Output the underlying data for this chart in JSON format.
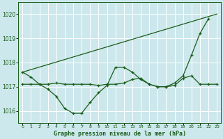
{
  "title": "Graphe pression niveau de la mer (hPa)",
  "background_color": "#cce8ec",
  "grid_color": "#ffffff",
  "line_color": "#1a5c1a",
  "ylim": [
    1015.5,
    1020.5
  ],
  "yticks": [
    1016,
    1017,
    1018,
    1019,
    1020
  ],
  "xlim": [
    -0.5,
    23.5
  ],
  "xticks": [
    0,
    1,
    2,
    3,
    4,
    5,
    6,
    7,
    8,
    9,
    10,
    11,
    12,
    13,
    14,
    15,
    16,
    17,
    18,
    19,
    20,
    21,
    22,
    23
  ],
  "series_wavy": {
    "x": [
      0,
      1,
      2,
      3,
      4,
      5,
      6,
      7,
      8,
      9,
      10,
      11,
      12,
      13,
      14,
      15,
      16,
      17,
      18,
      19,
      20,
      21,
      22
    ],
    "y": [
      1017.6,
      1017.4,
      1017.1,
      1016.9,
      1016.6,
      1016.1,
      1015.9,
      1015.9,
      1016.35,
      1016.75,
      1017.05,
      1017.8,
      1017.8,
      1017.6,
      1017.3,
      1017.1,
      1017.0,
      1017.0,
      1017.15,
      1017.45,
      1018.3,
      1019.2,
      1019.8
    ]
  },
  "series_flat": {
    "x": [
      0,
      1,
      2,
      3,
      4,
      5,
      6,
      7,
      8,
      9,
      10,
      11,
      12,
      13,
      14,
      15,
      16,
      17,
      18,
      19,
      20,
      21,
      22,
      23
    ],
    "y": [
      1017.1,
      1017.1,
      1017.1,
      1017.1,
      1017.15,
      1017.1,
      1017.1,
      1017.1,
      1017.1,
      1017.05,
      1017.1,
      1017.1,
      1017.15,
      1017.3,
      1017.35,
      1017.1,
      1017.0,
      1017.0,
      1017.05,
      1017.35,
      1017.45,
      1017.1,
      1017.1,
      1017.1
    ]
  },
  "series_diagonal": {
    "x": [
      0,
      23
    ],
    "y": [
      1017.6,
      1020.0
    ]
  }
}
